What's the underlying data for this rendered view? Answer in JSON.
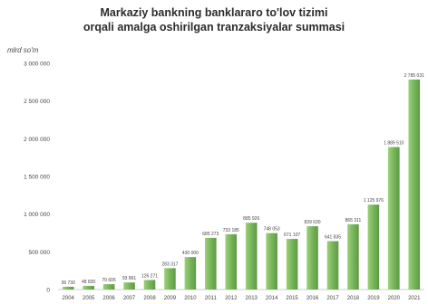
{
  "chart_data": {
    "type": "bar",
    "title": "Markaziy bankning banklararo to'lov tizimi",
    "subtitle": "orqali amalga oshirilgan tranzaksiyalar summasi",
    "ylabel": "mlrd so'm",
    "xlabel": "",
    "ylim": [
      0,
      3000000
    ],
    "y_ticks": [
      0,
      500000,
      1000000,
      1500000,
      2000000,
      2500000,
      3000000
    ],
    "y_tick_labels": [
      "0",
      "500 000",
      "1 000 000",
      "1 500 000",
      "2 000 000",
      "2 500 000",
      "3 000 000"
    ],
    "categories": [
      "2004",
      "2005",
      "2006",
      "2007",
      "2008",
      "2009",
      "2010",
      "2011",
      "2012",
      "2013",
      "2014",
      "2015",
      "2016",
      "2017",
      "2018",
      "2019",
      "2020",
      "2021"
    ],
    "values": [
      36730,
      48830,
      70605,
      93861,
      126271,
      283317,
      430000,
      685273,
      733185,
      885926,
      748053,
      671107,
      839630,
      641835,
      865311,
      1125976,
      1889510,
      2785031
    ],
    "data_labels": [
      "36 730",
      "48 830",
      "70 605",
      "93 861",
      "126 271",
      "283 317",
      "430 000",
      "685 273",
      "733 185",
      "885 926",
      "748 053",
      "671 107",
      "839 630",
      "641 835",
      "865 311",
      "1 125 976",
      "1 889 510",
      "2 785 031"
    ],
    "bar_color": "#77b55a",
    "grid": false,
    "legend": "none"
  }
}
